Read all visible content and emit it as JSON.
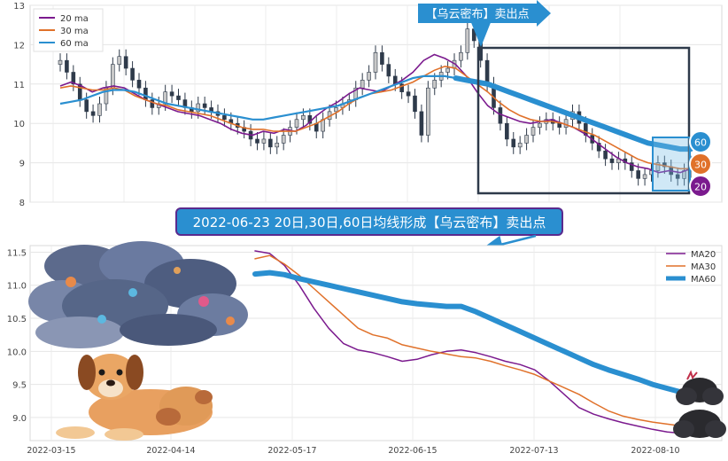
{
  "chart_data": [
    {
      "type": "line",
      "panel": "top",
      "title": "",
      "xlabel": "",
      "ylabel": "",
      "ylim": [
        8,
        13
      ],
      "yticks": [
        "8",
        "9",
        "10",
        "11",
        "12",
        "13"
      ],
      "grid": true,
      "legend_position": "top-left",
      "series": [
        {
          "name": "20 ma",
          "color": "#7b1a8e",
          "values": [
            10.95,
            11.05,
            10.95,
            10.8,
            10.9,
            10.95,
            10.9,
            10.75,
            10.6,
            10.5,
            10.4,
            10.3,
            10.25,
            10.2,
            10.1,
            10.0,
            9.85,
            9.75,
            9.7,
            9.8,
            9.75,
            9.85,
            9.8,
            9.95,
            10.2,
            10.4,
            10.55,
            10.75,
            10.9,
            10.85,
            10.8,
            10.95,
            11.1,
            11.3,
            11.6,
            11.75,
            11.65,
            11.5,
            11.2,
            10.8,
            10.45,
            10.25,
            10.15,
            10.05,
            10.0,
            10.05,
            10.1,
            10.0,
            9.9,
            9.75,
            9.55,
            9.35,
            9.15,
            9.0,
            8.9,
            8.85,
            8.75,
            8.8,
            8.75,
            8.85
          ]
        },
        {
          "name": "30 ma",
          "color": "#e0712a",
          "values": [
            10.9,
            10.95,
            10.9,
            10.85,
            10.85,
            10.9,
            10.85,
            10.7,
            10.6,
            10.5,
            10.45,
            10.35,
            10.3,
            10.25,
            10.2,
            10.1,
            10.0,
            9.9,
            9.85,
            9.85,
            9.8,
            9.8,
            9.8,
            9.9,
            10.0,
            10.15,
            10.3,
            10.5,
            10.65,
            10.75,
            10.8,
            10.85,
            10.95,
            11.05,
            11.2,
            11.35,
            11.45,
            11.4,
            11.2,
            11.0,
            10.8,
            10.55,
            10.35,
            10.2,
            10.1,
            10.05,
            10.05,
            10.0,
            9.9,
            9.8,
            9.7,
            9.55,
            9.4,
            9.25,
            9.1,
            9.0,
            8.95,
            8.9,
            8.85,
            8.85
          ]
        },
        {
          "name": "60 ma",
          "color": "#2a8fd0",
          "values": [
            10.5,
            10.55,
            10.6,
            10.7,
            10.8,
            10.85,
            10.85,
            10.8,
            10.7,
            10.6,
            10.5,
            10.45,
            10.4,
            10.35,
            10.3,
            10.25,
            10.2,
            10.15,
            10.1,
            10.1,
            10.15,
            10.2,
            10.25,
            10.3,
            10.35,
            10.4,
            10.45,
            10.55,
            10.65,
            10.75,
            10.85,
            10.95,
            11.05,
            11.15,
            11.2,
            11.2,
            11.2,
            11.15,
            11.1,
            11.05,
            11.0,
            10.9,
            10.8,
            10.7,
            10.6,
            10.5,
            10.4,
            10.3,
            10.2,
            10.1,
            10.0,
            9.9,
            9.8,
            9.7,
            9.6,
            9.5,
            9.45,
            9.4,
            9.35,
            9.35
          ]
        }
      ],
      "candles": {
        "bull_color": "#c8c8c8",
        "bear_color": "#2e3a4a",
        "close": [
          11.6,
          11.3,
          11.0,
          10.6,
          10.3,
          10.2,
          10.5,
          10.9,
          11.5,
          11.7,
          11.4,
          11.1,
          10.9,
          10.6,
          10.4,
          10.5,
          10.8,
          10.7,
          10.6,
          10.4,
          10.3,
          10.5,
          10.4,
          10.3,
          10.2,
          10.1,
          10.0,
          9.9,
          9.8,
          9.6,
          9.5,
          9.6,
          9.4,
          9.5,
          9.7,
          9.9,
          10.1,
          10.2,
          10.0,
          9.8,
          10.1,
          10.3,
          10.4,
          10.5,
          10.6,
          10.9,
          11.1,
          11.3,
          11.8,
          11.5,
          11.2,
          11.0,
          10.8,
          10.7,
          10.3,
          9.7,
          10.9,
          11.1,
          11.3,
          11.4,
          11.6,
          11.8,
          12.4,
          12.1,
          11.6,
          11.0,
          10.4,
          10.0,
          9.6,
          9.4,
          9.5,
          9.7,
          9.9,
          10.0,
          10.1,
          10.0,
          9.9,
          10.1,
          10.3,
          10.0,
          9.7,
          9.5,
          9.3,
          9.1,
          9.0,
          9.1,
          9.0,
          8.8,
          8.6,
          8.7,
          8.8,
          9.0,
          8.9,
          8.7,
          8.6,
          8.8,
          9.0
        ]
      },
      "annotations": [
        {
          "text": "【乌云密布】卖出点",
          "kind": "arrow-banner",
          "color": "#2a8fd0"
        },
        {
          "text": "60",
          "kind": "badge",
          "color": "#2a8fd0"
        },
        {
          "text": "30",
          "kind": "badge",
          "color": "#e0712a"
        },
        {
          "text": "20",
          "kind": "badge",
          "color": "#7b1a8e"
        }
      ]
    },
    {
      "type": "line",
      "panel": "bottom",
      "title": "2022-06-23 20日,30日,60日均线形成【乌云密布】卖出点",
      "xlabel": "",
      "ylabel": "",
      "ylim": [
        8.65,
        11.6
      ],
      "yticks": [
        "9.0",
        "9.5",
        "10.0",
        "10.5",
        "11.0",
        "11.5"
      ],
      "xticks": [
        "2022-03-15",
        "2022-04-14",
        "2022-05-17",
        "2022-06-15",
        "2022-07-13",
        "2022-08-10"
      ],
      "grid": true,
      "legend_position": "top-right",
      "series": [
        {
          "name": "MA20",
          "color": "#7b1a8e",
          "line_style": "thin",
          "values": [
            11.52,
            11.48,
            11.3,
            11.0,
            10.65,
            10.35,
            10.12,
            10.02,
            9.98,
            9.92,
            9.85,
            9.88,
            9.95,
            10.0,
            10.02,
            9.98,
            9.92,
            9.85,
            9.8,
            9.72,
            9.55,
            9.35,
            9.15,
            9.05,
            8.98,
            8.92,
            8.87,
            8.82,
            8.78,
            8.76
          ]
        },
        {
          "name": "MA30",
          "color": "#e0712a",
          "line_style": "thin",
          "values": [
            11.4,
            11.45,
            11.32,
            11.15,
            10.95,
            10.75,
            10.55,
            10.35,
            10.25,
            10.2,
            10.1,
            10.05,
            10.0,
            9.96,
            9.92,
            9.9,
            9.85,
            9.78,
            9.72,
            9.65,
            9.55,
            9.45,
            9.35,
            9.22,
            9.1,
            9.02,
            8.97,
            8.93,
            8.9,
            8.87
          ]
        },
        {
          "name": "MA60",
          "color": "#2a8fd0",
          "line_style": "thick",
          "values": [
            11.17,
            11.19,
            11.16,
            11.1,
            11.05,
            11.0,
            10.95,
            10.9,
            10.85,
            10.8,
            10.75,
            10.72,
            10.7,
            10.68,
            10.68,
            10.6,
            10.5,
            10.4,
            10.3,
            10.2,
            10.1,
            10.0,
            9.9,
            9.8,
            9.72,
            9.65,
            9.58,
            9.5,
            9.44,
            9.38
          ]
        }
      ],
      "annotations": [
        {
          "text": "",
          "kind": "arrow"
        }
      ]
    }
  ]
}
